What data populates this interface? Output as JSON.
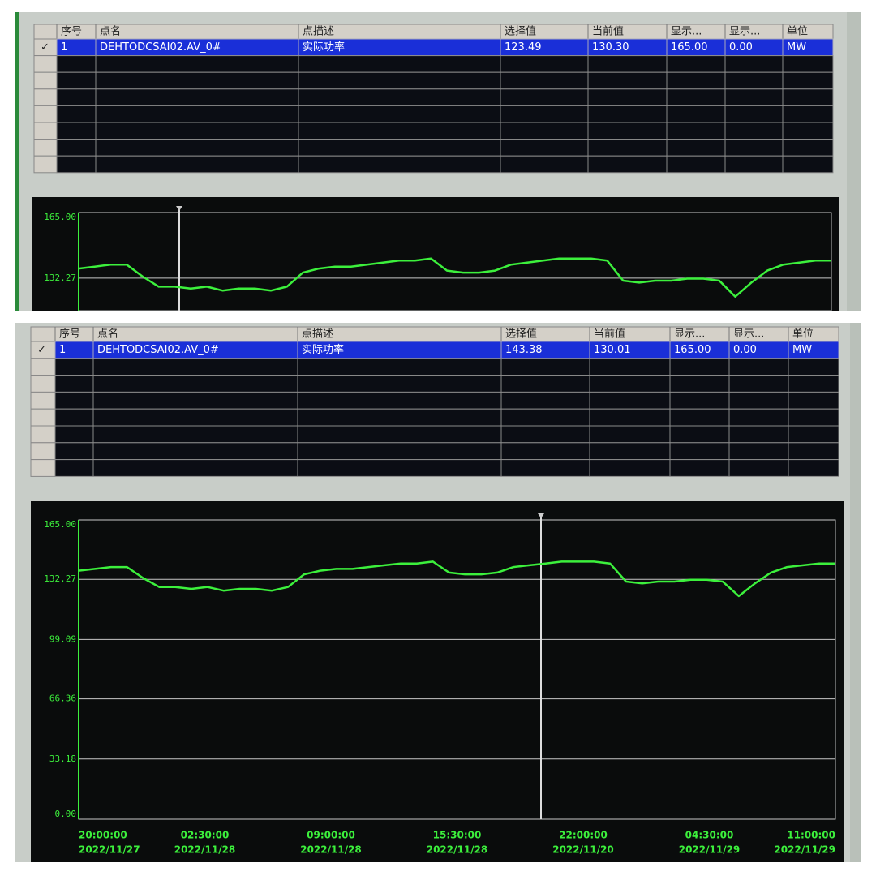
{
  "panels": [
    {
      "table": {
        "columns": [
          "序号",
          "点名",
          "点描述",
          "选择值",
          "当前值",
          "显示...",
          "显示...",
          "单位"
        ],
        "row_marker": "✓",
        "rows": [
          [
            "1",
            "DEHTODCSAI02.AV_0#",
            "实际功率",
            "123.49",
            "130.30",
            "165.00",
            "0.00",
            "MW"
          ]
        ]
      },
      "chart": {
        "type": "line",
        "color": "#3cf03c",
        "ylim": [
          116,
          165
        ],
        "yticks": [
          {
            "value": 165,
            "label": "165.00"
          },
          132.27
        ],
        "values": [
          137,
          138,
          139,
          139,
          133,
          128,
          128,
          127,
          128,
          126,
          127,
          127,
          126,
          128,
          135,
          137,
          138,
          138,
          139,
          140,
          141,
          141,
          142,
          136,
          135,
          135,
          136,
          139,
          140,
          141,
          142,
          142,
          142,
          141,
          131,
          130,
          131,
          131,
          132,
          132,
          131,
          123,
          130,
          136,
          139,
          140,
          141,
          141
        ]
      }
    },
    {
      "table": {
        "columns": [
          "序号",
          "点名",
          "点描述",
          "选择值",
          "当前值",
          "显示...",
          "显示...",
          "单位"
        ],
        "row_marker": "✓",
        "rows": [
          [
            "1",
            "DEHTODCSAI02.AV_0#",
            "实际功率",
            "143.38",
            "130.01",
            "165.00",
            "0.00",
            "MW"
          ]
        ]
      },
      "chart": {
        "type": "line",
        "color": "#3cf03c",
        "ylim": [
          0,
          165
        ],
        "yticks": [
          {
            "value": 165,
            "label": "165.00"
          },
          132.27,
          99.09,
          66.36,
          33.18,
          {
            "value": 0,
            "label": "0.00"
          }
        ],
        "values": [
          137,
          138,
          139,
          139,
          133,
          128,
          128,
          127,
          128,
          126,
          127,
          127,
          126,
          128,
          135,
          137,
          138,
          138,
          139,
          140,
          141,
          141,
          142,
          136,
          135,
          135,
          136,
          139,
          140,
          141,
          142,
          142,
          142,
          141,
          131,
          130,
          131,
          131,
          132,
          132,
          131,
          123,
          130,
          136,
          139,
          140,
          141,
          141
        ],
        "x_labels": [
          {
            "time": "20:00:00",
            "date": "2022/11/27"
          },
          {
            "time": "02:30:00",
            "date": "2022/11/28"
          },
          {
            "time": "09:00:00",
            "date": "2022/11/28"
          },
          {
            "time": "15:30:00",
            "date": "2022/11/28"
          },
          {
            "time": "22:00:00",
            "date": "2022/11/20"
          },
          {
            "time": "04:30:00",
            "date": "2022/11/29"
          },
          {
            "time": "11:00:00",
            "date": "2022/11/29"
          }
        ]
      }
    }
  ]
}
